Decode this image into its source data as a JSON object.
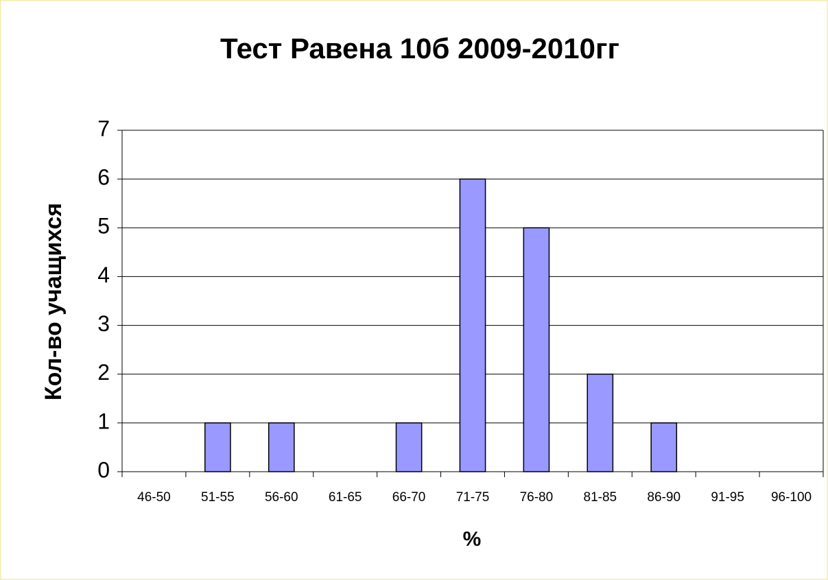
{
  "chart_data": {
    "type": "bar",
    "title": "Тест Равена 10б 2009-2010гг",
    "x_label": "%",
    "y_label": "Кол-во учащихся",
    "categories": [
      "46-50",
      "51-55",
      "56-60",
      "61-65",
      "66-70",
      "71-75",
      "76-80",
      "81-85",
      "86-90",
      "91-95",
      "96-100"
    ],
    "values": [
      0,
      1,
      1,
      0,
      1,
      6,
      5,
      2,
      1,
      0,
      0
    ],
    "color": "#9999ff",
    "ylim": [
      0,
      7
    ],
    "yticks": [
      0,
      1,
      2,
      3,
      4,
      5,
      6,
      7
    ],
    "grid": true
  }
}
